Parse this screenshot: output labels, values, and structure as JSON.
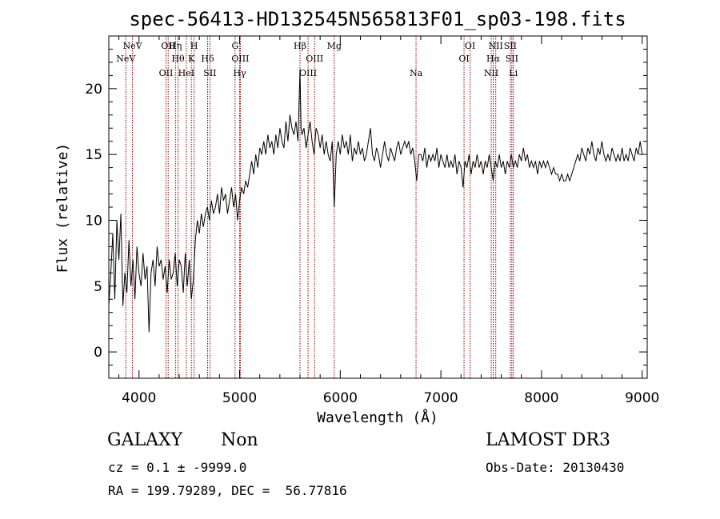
{
  "chart_data": {
    "type": "line",
    "title": "spec-56413-HD132545N565813F01_sp03-198.fits",
    "xlabel": "Wavelength (Å)",
    "ylabel": "Flux (relative)",
    "xlim": [
      3700,
      9050
    ],
    "ylim": [
      -2,
      24
    ],
    "x_ticks": [
      "4000",
      "5000",
      "6000",
      "7000",
      "8000",
      "9000"
    ],
    "y_ticks": [
      "0",
      "5",
      "10",
      "15",
      "20"
    ],
    "series": [
      {
        "values_xy": [
          [
            3700,
            3.5
          ],
          [
            3720,
            6.0
          ],
          [
            3740,
            9.0
          ],
          [
            3760,
            4.0
          ],
          [
            3780,
            10.0
          ],
          [
            3800,
            7.0
          ],
          [
            3820,
            10.5
          ],
          [
            3840,
            3.5
          ],
          [
            3860,
            6.0
          ],
          [
            3880,
            4.5
          ],
          [
            3900,
            8.5
          ],
          [
            3920,
            5.0
          ],
          [
            3940,
            7.0
          ],
          [
            3960,
            4.0
          ],
          [
            3980,
            8.0
          ],
          [
            4000,
            6.0
          ],
          [
            4020,
            5.0
          ],
          [
            4040,
            7.5
          ],
          [
            4060,
            5.5
          ],
          [
            4080,
            6.5
          ],
          [
            4100,
            1.5
          ],
          [
            4120,
            6.0
          ],
          [
            4140,
            7.0
          ],
          [
            4160,
            5.0
          ],
          [
            4180,
            8.0
          ],
          [
            4200,
            6.5
          ],
          [
            4220,
            7.0
          ],
          [
            4240,
            5.5
          ],
          [
            4260,
            6.5
          ],
          [
            4280,
            4.5
          ],
          [
            4300,
            7.0
          ],
          [
            4320,
            5.5
          ],
          [
            4340,
            6.0
          ],
          [
            4360,
            7.5
          ],
          [
            4380,
            5.0
          ],
          [
            4400,
            7.0
          ],
          [
            4420,
            6.5
          ],
          [
            4440,
            4.5
          ],
          [
            4460,
            7.5
          ],
          [
            4480,
            5.0
          ],
          [
            4500,
            7.0
          ],
          [
            4520,
            4.0
          ],
          [
            4540,
            5.5
          ],
          [
            4560,
            8.5
          ],
          [
            4580,
            10.0
          ],
          [
            4600,
            9.0
          ],
          [
            4620,
            10.5
          ],
          [
            4640,
            9.5
          ],
          [
            4660,
            10.5
          ],
          [
            4680,
            11.0
          ],
          [
            4700,
            10.0
          ],
          [
            4720,
            11.5
          ],
          [
            4740,
            10.5
          ],
          [
            4760,
            11.0
          ],
          [
            4780,
            12.0
          ],
          [
            4800,
            10.5
          ],
          [
            4820,
            12.5
          ],
          [
            4840,
            11.5
          ],
          [
            4860,
            12.0
          ],
          [
            4880,
            10.5
          ],
          [
            4900,
            11.5
          ],
          [
            4920,
            12.5
          ],
          [
            4940,
            11.0
          ],
          [
            4960,
            12.0
          ],
          [
            4980,
            10.0
          ],
          [
            5000,
            11.5
          ],
          [
            5020,
            12.5
          ],
          [
            5040,
            12.0
          ],
          [
            5060,
            13.0
          ],
          [
            5080,
            12.5
          ],
          [
            5100,
            13.5
          ],
          [
            5120,
            14.5
          ],
          [
            5140,
            13.5
          ],
          [
            5160,
            15.0
          ],
          [
            5180,
            14.0
          ],
          [
            5200,
            15.5
          ],
          [
            5220,
            15.0
          ],
          [
            5240,
            16.0
          ],
          [
            5260,
            15.0
          ],
          [
            5280,
            16.5
          ],
          [
            5300,
            15.5
          ],
          [
            5320,
            16.0
          ],
          [
            5340,
            15.0
          ],
          [
            5360,
            16.5
          ],
          [
            5380,
            15.5
          ],
          [
            5400,
            17.0
          ],
          [
            5420,
            16.0
          ],
          [
            5440,
            15.5
          ],
          [
            5460,
            17.5
          ],
          [
            5480,
            16.0
          ],
          [
            5500,
            18.0
          ],
          [
            5520,
            17.0
          ],
          [
            5540,
            16.5
          ],
          [
            5560,
            17.5
          ],
          [
            5580,
            16.0
          ],
          [
            5600,
            21.5
          ],
          [
            5610,
            17.0
          ],
          [
            5620,
            16.5
          ],
          [
            5640,
            17.0
          ],
          [
            5660,
            15.5
          ],
          [
            5680,
            16.5
          ],
          [
            5700,
            17.5
          ],
          [
            5720,
            16.0
          ],
          [
            5740,
            15.0
          ],
          [
            5760,
            17.0
          ],
          [
            5780,
            16.5
          ],
          [
            5800,
            15.5
          ],
          [
            5820,
            16.5
          ],
          [
            5840,
            15.0
          ],
          [
            5860,
            16.0
          ],
          [
            5880,
            15.0
          ],
          [
            5900,
            14.5
          ],
          [
            5920,
            16.0
          ],
          [
            5940,
            11.0
          ],
          [
            5960,
            15.0
          ],
          [
            5980,
            16.0
          ],
          [
            6000,
            15.0
          ],
          [
            6020,
            16.5
          ],
          [
            6040,
            15.5
          ],
          [
            6060,
            16.0
          ],
          [
            6080,
            15.0
          ],
          [
            6100,
            16.5
          ],
          [
            6120,
            14.5
          ],
          [
            6140,
            15.5
          ],
          [
            6160,
            15.0
          ],
          [
            6180,
            16.0
          ],
          [
            6200,
            15.0
          ],
          [
            6220,
            15.5
          ],
          [
            6240,
            14.5
          ],
          [
            6260,
            15.0
          ],
          [
            6280,
            16.0
          ],
          [
            6300,
            17.0
          ],
          [
            6320,
            15.0
          ],
          [
            6340,
            14.5
          ],
          [
            6360,
            15.5
          ],
          [
            6380,
            15.0
          ],
          [
            6400,
            14.0
          ],
          [
            6420,
            15.0
          ],
          [
            6440,
            16.0
          ],
          [
            6460,
            15.0
          ],
          [
            6480,
            14.5
          ],
          [
            6500,
            15.5
          ],
          [
            6520,
            15.0
          ],
          [
            6540,
            14.5
          ],
          [
            6560,
            15.5
          ],
          [
            6580,
            16.0
          ],
          [
            6600,
            15.0
          ],
          [
            6620,
            15.5
          ],
          [
            6640,
            16.0
          ],
          [
            6660,
            15.5
          ],
          [
            6680,
            16.0
          ],
          [
            6700,
            15.0
          ],
          [
            6720,
            15.5
          ],
          [
            6740,
            14.5
          ],
          [
            6760,
            13.0
          ],
          [
            6780,
            15.0
          ],
          [
            6800,
            15.0
          ],
          [
            6820,
            14.5
          ],
          [
            6840,
            15.5
          ],
          [
            6860,
            14.0
          ],
          [
            6880,
            15.0
          ],
          [
            6900,
            14.5
          ],
          [
            6920,
            15.0
          ],
          [
            6940,
            14.5
          ],
          [
            6960,
            15.5
          ],
          [
            6980,
            14.0
          ],
          [
            7000,
            15.0
          ],
          [
            7020,
            14.5
          ],
          [
            7040,
            14.0
          ],
          [
            7060,
            15.0
          ],
          [
            7080,
            14.0
          ],
          [
            7100,
            14.5
          ],
          [
            7120,
            14.0
          ],
          [
            7140,
            15.0
          ],
          [
            7160,
            13.5
          ],
          [
            7180,
            14.5
          ],
          [
            7200,
            14.0
          ],
          [
            7220,
            12.5
          ],
          [
            7240,
            14.5
          ],
          [
            7260,
            14.0
          ],
          [
            7280,
            15.0
          ],
          [
            7300,
            13.5
          ],
          [
            7320,
            14.5
          ],
          [
            7340,
            14.0
          ],
          [
            7360,
            15.0
          ],
          [
            7380,
            14.0
          ],
          [
            7400,
            14.5
          ],
          [
            7420,
            13.5
          ],
          [
            7440,
            14.5
          ],
          [
            7460,
            14.0
          ],
          [
            7480,
            15.0
          ],
          [
            7500,
            14.0
          ],
          [
            7520,
            13.0
          ],
          [
            7540,
            14.5
          ],
          [
            7560,
            14.0
          ],
          [
            7580,
            15.0
          ],
          [
            7600,
            14.0
          ],
          [
            7620,
            14.5
          ],
          [
            7640,
            13.5
          ],
          [
            7660,
            14.5
          ],
          [
            7680,
            14.0
          ],
          [
            7700,
            15.0
          ],
          [
            7720,
            14.0
          ],
          [
            7740,
            14.5
          ],
          [
            7760,
            14.0
          ],
          [
            7780,
            15.0
          ],
          [
            7800,
            14.5
          ],
          [
            7820,
            15.5
          ],
          [
            7840,
            14.5
          ],
          [
            7860,
            15.0
          ],
          [
            7880,
            14.0
          ],
          [
            7900,
            14.5
          ],
          [
            7920,
            14.0
          ],
          [
            7940,
            14.5
          ],
          [
            7960,
            13.5
          ],
          [
            7980,
            14.5
          ],
          [
            8000,
            14.0
          ],
          [
            8020,
            14.5
          ],
          [
            8040,
            14.0
          ],
          [
            8060,
            14.5
          ],
          [
            8080,
            14.0
          ],
          [
            8100,
            13.5
          ],
          [
            8120,
            14.0
          ],
          [
            8140,
            13.5
          ],
          [
            8160,
            13.5
          ],
          [
            8180,
            13.0
          ],
          [
            8200,
            13.5
          ],
          [
            8220,
            13.0
          ],
          [
            8240,
            13.0
          ],
          [
            8260,
            13.5
          ],
          [
            8280,
            13.0
          ],
          [
            8300,
            13.5
          ],
          [
            8320,
            14.0
          ],
          [
            8340,
            14.5
          ],
          [
            8360,
            15.0
          ],
          [
            8380,
            14.5
          ],
          [
            8400,
            15.5
          ],
          [
            8420,
            15.0
          ],
          [
            8440,
            14.5
          ],
          [
            8460,
            15.5
          ],
          [
            8480,
            15.0
          ],
          [
            8500,
            16.0
          ],
          [
            8520,
            15.0
          ],
          [
            8540,
            14.5
          ],
          [
            8560,
            15.5
          ],
          [
            8580,
            15.0
          ],
          [
            8600,
            16.0
          ],
          [
            8620,
            15.0
          ],
          [
            8640,
            14.5
          ],
          [
            8660,
            15.0
          ],
          [
            8680,
            14.5
          ],
          [
            8700,
            15.5
          ],
          [
            8720,
            15.0
          ],
          [
            8740,
            14.5
          ],
          [
            8760,
            15.0
          ],
          [
            8780,
            14.5
          ],
          [
            8800,
            15.5
          ],
          [
            8820,
            14.5
          ],
          [
            8840,
            15.0
          ],
          [
            8860,
            14.5
          ],
          [
            8880,
            15.5
          ],
          [
            8900,
            15.0
          ],
          [
            8920,
            14.5
          ],
          [
            8940,
            15.5
          ],
          [
            8960,
            15.0
          ],
          [
            8980,
            16.0
          ],
          [
            9000,
            15.0
          ]
        ]
      }
    ],
    "line_color": "#000000",
    "marker_color": "#8b0000",
    "spectral_lines": [
      {
        "label": "NeV",
        "x": 3869,
        "row": 1
      },
      {
        "label": "NeV",
        "x": 3935,
        "row": 0
      },
      {
        "label": "OII",
        "x": 4268,
        "row": 2
      },
      {
        "label": "OII",
        "x": 4290,
        "row": 0
      },
      {
        "label": "Hη",
        "x": 4362,
        "row": 0
      },
      {
        "label": "Hθ",
        "x": 4388,
        "row": 1
      },
      {
        "label": "HeI",
        "x": 4470,
        "row": 2
      },
      {
        "label": "K",
        "x": 4520,
        "row": 1
      },
      {
        "label": "H",
        "x": 4548,
        "row": 0
      },
      {
        "label": "Hδ",
        "x": 4682,
        "row": 1
      },
      {
        "label": "SII",
        "x": 4705,
        "row": 2
      },
      {
        "label": "G",
        "x": 4955,
        "row": 0
      },
      {
        "label": "OIII",
        "x": 5007,
        "row": 1
      },
      {
        "label": "Hγ",
        "x": 5000,
        "row": 2
      },
      {
        "label": "Hβ",
        "x": 5600,
        "row": 0
      },
      {
        "label": "OIII",
        "x": 5680,
        "row": 2
      },
      {
        "label": "OIII",
        "x": 5745,
        "row": 1
      },
      {
        "label": "Mg",
        "x": 5940,
        "row": 0
      },
      {
        "label": "Na",
        "x": 6753,
        "row": 2
      },
      {
        "label": "OI",
        "x": 7230,
        "row": 1
      },
      {
        "label": "OI",
        "x": 7290,
        "row": 0
      },
      {
        "label": "NII",
        "x": 7500,
        "row": 2
      },
      {
        "label": "Hα",
        "x": 7520,
        "row": 1
      },
      {
        "label": "NII",
        "x": 7545,
        "row": 0
      },
      {
        "label": "SII",
        "x": 7690,
        "row": 0
      },
      {
        "label": "SII",
        "x": 7705,
        "row": 1
      },
      {
        "label": "Li",
        "x": 7720,
        "row": 2
      }
    ]
  },
  "info": {
    "classification": "GALAXY",
    "subclass": "Non",
    "survey": "LAMOST DR3",
    "redshift_line": "cz = 0.1 ± -9999.0",
    "obs_date_line": "Obs-Date: 20130430",
    "coords_line": "RA = 199.79289, DEC =  56.77816"
  }
}
